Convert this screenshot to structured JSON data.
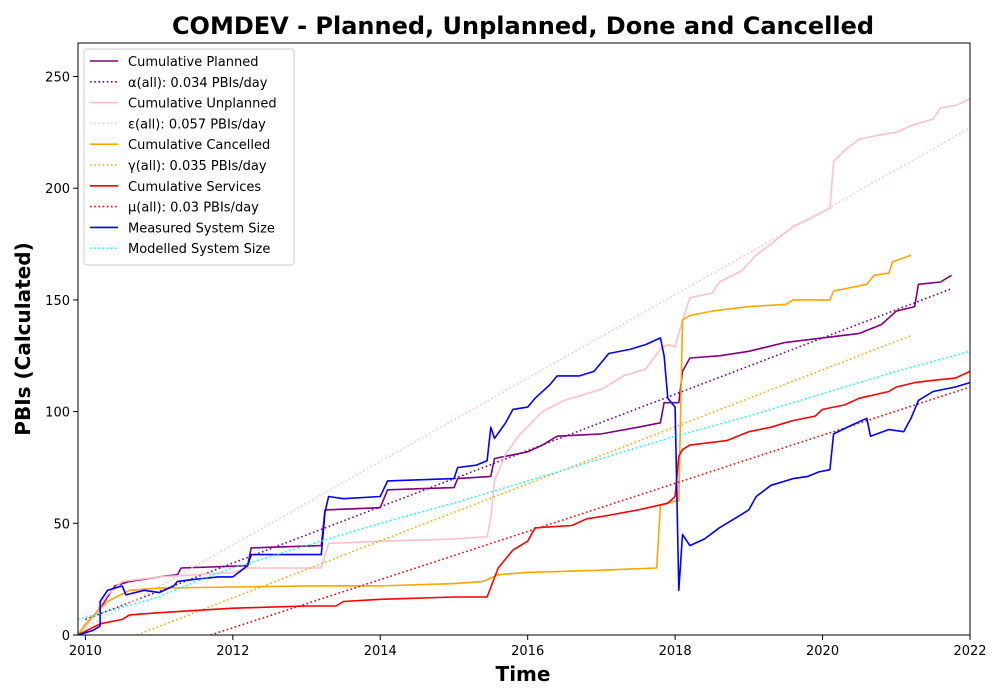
{
  "chart_data": {
    "type": "line",
    "title": "COMDEV - Planned, Unplanned, Done  and Cancelled",
    "xlabel": "Time",
    "ylabel": "PBIs (Calculated)",
    "xlim": [
      2009.9,
      2022.0
    ],
    "ylim": [
      0,
      265
    ],
    "x_ticks": [
      {
        "v": 2010,
        "label": "2010"
      },
      {
        "v": 2012,
        "label": "2012"
      },
      {
        "v": 2014,
        "label": "2014"
      },
      {
        "v": 2016,
        "label": "2016"
      },
      {
        "v": 2018,
        "label": "2018"
      },
      {
        "v": 2020,
        "label": "2020"
      },
      {
        "v": 2022,
        "label": "2022"
      }
    ],
    "y_ticks": [
      {
        "v": 0,
        "label": "0"
      },
      {
        "v": 50,
        "label": "50"
      },
      {
        "v": 100,
        "label": "100"
      },
      {
        "v": 150,
        "label": "150"
      },
      {
        "v": 200,
        "label": "200"
      },
      {
        "v": 250,
        "label": "250"
      }
    ],
    "grid": false,
    "legend_position": "top-left",
    "series": [
      {
        "name": "Cumulative Planned",
        "color": "#800080",
        "style": "solid",
        "points": [
          [
            2009.9,
            0
          ],
          [
            2010.2,
            12
          ],
          [
            2010.4,
            22
          ],
          [
            2010.6,
            24
          ],
          [
            2011.0,
            26
          ],
          [
            2011.25,
            27
          ],
          [
            2011.3,
            30
          ],
          [
            2012.2,
            31
          ],
          [
            2012.25,
            39
          ],
          [
            2013.2,
            40
          ],
          [
            2013.25,
            56
          ],
          [
            2014.0,
            57
          ],
          [
            2014.1,
            65
          ],
          [
            2015.0,
            66
          ],
          [
            2015.05,
            70
          ],
          [
            2015.5,
            71
          ],
          [
            2015.55,
            79
          ],
          [
            2016.0,
            82
          ],
          [
            2016.2,
            85
          ],
          [
            2016.4,
            89
          ],
          [
            2017.0,
            90
          ],
          [
            2017.5,
            93
          ],
          [
            2017.8,
            95
          ],
          [
            2017.85,
            104
          ],
          [
            2018.05,
            104
          ],
          [
            2018.1,
            118
          ],
          [
            2018.2,
            124
          ],
          [
            2018.6,
            125
          ],
          [
            2019.0,
            127
          ],
          [
            2019.5,
            131
          ],
          [
            2020.0,
            133
          ],
          [
            2020.5,
            135
          ],
          [
            2020.8,
            139
          ],
          [
            2021.0,
            145
          ],
          [
            2021.25,
            147
          ],
          [
            2021.3,
            157
          ],
          [
            2021.6,
            158
          ],
          [
            2021.75,
            161
          ]
        ]
      },
      {
        "name": "α(all): 0.034 PBIs/day",
        "color": "#800080",
        "style": "dotted",
        "points": [
          [
            2010.0,
            7
          ],
          [
            2021.75,
            155
          ]
        ]
      },
      {
        "name": "Cumulative Unplanned",
        "color": "#ffc0cb",
        "style": "solid",
        "points": [
          [
            2009.9,
            0
          ],
          [
            2010.1,
            8
          ],
          [
            2010.3,
            18
          ],
          [
            2010.5,
            24
          ],
          [
            2011.0,
            26
          ],
          [
            2012.0,
            28
          ],
          [
            2012.2,
            30
          ],
          [
            2013.2,
            30
          ],
          [
            2013.3,
            41
          ],
          [
            2014.0,
            42
          ],
          [
            2015.0,
            43
          ],
          [
            2015.45,
            44
          ],
          [
            2015.5,
            52
          ],
          [
            2015.55,
            69
          ],
          [
            2015.7,
            81
          ],
          [
            2015.9,
            90
          ],
          [
            2016.2,
            100
          ],
          [
            2016.5,
            105
          ],
          [
            2017.0,
            110
          ],
          [
            2017.3,
            116
          ],
          [
            2017.6,
            119
          ],
          [
            2017.8,
            128
          ],
          [
            2017.9,
            130
          ],
          [
            2018.0,
            129
          ],
          [
            2018.1,
            141
          ],
          [
            2018.2,
            151
          ],
          [
            2018.5,
            153
          ],
          [
            2018.6,
            158
          ],
          [
            2018.9,
            163
          ],
          [
            2019.1,
            170
          ],
          [
            2019.3,
            175
          ],
          [
            2019.6,
            183
          ],
          [
            2019.8,
            186
          ],
          [
            2020.1,
            191
          ],
          [
            2020.15,
            212
          ],
          [
            2020.3,
            217
          ],
          [
            2020.5,
            222
          ],
          [
            2020.8,
            224
          ],
          [
            2021.0,
            225
          ],
          [
            2021.2,
            228
          ],
          [
            2021.5,
            231
          ],
          [
            2021.6,
            236
          ],
          [
            2021.8,
            237
          ],
          [
            2022.0,
            240
          ]
        ]
      },
      {
        "name": "ε(all): 0.057 PBIs/day",
        "color": "#ffc0cb",
        "style": "dotted",
        "points": [
          [
            2010.0,
            3
          ],
          [
            2022.0,
            227
          ]
        ]
      },
      {
        "name": "Cumulative Cancelled",
        "color": "#ffa500",
        "style": "solid",
        "points": [
          [
            2009.9,
            0
          ],
          [
            2010.0,
            5
          ],
          [
            2010.3,
            15
          ],
          [
            2010.6,
            20
          ],
          [
            2011.0,
            21
          ],
          [
            2012.0,
            21.5
          ],
          [
            2013.0,
            22
          ],
          [
            2014.0,
            22
          ],
          [
            2015.0,
            23
          ],
          [
            2015.4,
            24
          ],
          [
            2015.6,
            27
          ],
          [
            2016.0,
            28
          ],
          [
            2017.0,
            29
          ],
          [
            2017.75,
            30
          ],
          [
            2017.8,
            58
          ],
          [
            2018.0,
            60
          ],
          [
            2018.05,
            60
          ],
          [
            2018.1,
            141
          ],
          [
            2018.2,
            143
          ],
          [
            2018.5,
            145
          ],
          [
            2019.0,
            147
          ],
          [
            2019.5,
            148
          ],
          [
            2019.6,
            150
          ],
          [
            2020.1,
            150
          ],
          [
            2020.15,
            154
          ],
          [
            2020.6,
            157
          ],
          [
            2020.7,
            161
          ],
          [
            2020.9,
            162
          ],
          [
            2020.95,
            167
          ],
          [
            2021.2,
            170
          ]
        ]
      },
      {
        "name": "γ(all): 0.035 PBIs/day",
        "color": "#ffa500",
        "style": "dotted",
        "points": [
          [
            2010.7,
            0
          ],
          [
            2021.2,
            134
          ]
        ]
      },
      {
        "name": "Cumulative Services",
        "color": "#ff0000",
        "style": "solid",
        "points": [
          [
            2009.9,
            0
          ],
          [
            2010.2,
            5
          ],
          [
            2010.5,
            7
          ],
          [
            2010.6,
            9
          ],
          [
            2011.0,
            10
          ],
          [
            2012.0,
            12
          ],
          [
            2013.0,
            13
          ],
          [
            2013.4,
            13
          ],
          [
            2013.5,
            15
          ],
          [
            2014.0,
            16
          ],
          [
            2015.0,
            17
          ],
          [
            2015.45,
            17
          ],
          [
            2015.6,
            30
          ],
          [
            2015.8,
            38
          ],
          [
            2016.0,
            42
          ],
          [
            2016.1,
            48
          ],
          [
            2016.6,
            49
          ],
          [
            2016.8,
            52
          ],
          [
            2017.0,
            53
          ],
          [
            2017.5,
            56
          ],
          [
            2017.9,
            59
          ],
          [
            2018.0,
            62
          ],
          [
            2018.05,
            80
          ],
          [
            2018.1,
            83
          ],
          [
            2018.2,
            85
          ],
          [
            2018.7,
            87
          ],
          [
            2019.0,
            91
          ],
          [
            2019.3,
            93
          ],
          [
            2019.6,
            96
          ],
          [
            2019.9,
            98
          ],
          [
            2020.0,
            101
          ],
          [
            2020.3,
            103
          ],
          [
            2020.5,
            106
          ],
          [
            2020.9,
            109
          ],
          [
            2021.0,
            111
          ],
          [
            2021.25,
            113
          ],
          [
            2021.5,
            114
          ],
          [
            2021.8,
            115
          ],
          [
            2022.0,
            118
          ]
        ]
      },
      {
        "name": "μ(all): 0.03 PBIs/day",
        "color": "#ff0000",
        "style": "dotted",
        "points": [
          [
            2011.7,
            0
          ],
          [
            2022.0,
            111
          ]
        ]
      },
      {
        "name": "Measured System Size",
        "color": "#0000ff",
        "style": "solid",
        "points": [
          [
            2009.9,
            0
          ],
          [
            2010.1,
            2
          ],
          [
            2010.2,
            4
          ],
          [
            2010.2,
            15
          ],
          [
            2010.3,
            20
          ],
          [
            2010.5,
            22
          ],
          [
            2010.55,
            18
          ],
          [
            2010.8,
            20
          ],
          [
            2011.0,
            19
          ],
          [
            2011.2,
            22
          ],
          [
            2011.25,
            24
          ],
          [
            2011.5,
            25
          ],
          [
            2011.8,
            26
          ],
          [
            2012.0,
            26
          ],
          [
            2012.2,
            31
          ],
          [
            2012.25,
            36
          ],
          [
            2013.2,
            36
          ],
          [
            2013.25,
            55
          ],
          [
            2013.3,
            62
          ],
          [
            2013.5,
            61
          ],
          [
            2014.0,
            62
          ],
          [
            2014.1,
            69
          ],
          [
            2015.0,
            70
          ],
          [
            2015.05,
            75
          ],
          [
            2015.3,
            76
          ],
          [
            2015.45,
            78
          ],
          [
            2015.5,
            93
          ],
          [
            2015.55,
            88
          ],
          [
            2015.7,
            95
          ],
          [
            2015.8,
            101
          ],
          [
            2016.0,
            102
          ],
          [
            2016.1,
            106
          ],
          [
            2016.3,
            112
          ],
          [
            2016.4,
            116
          ],
          [
            2016.7,
            116
          ],
          [
            2016.9,
            118
          ],
          [
            2017.1,
            126
          ],
          [
            2017.4,
            128
          ],
          [
            2017.6,
            130
          ],
          [
            2017.8,
            133
          ],
          [
            2017.85,
            125
          ],
          [
            2017.9,
            106
          ],
          [
            2018.0,
            102
          ],
          [
            2018.05,
            20
          ],
          [
            2018.1,
            45
          ],
          [
            2018.2,
            40
          ],
          [
            2018.4,
            43
          ],
          [
            2018.6,
            48
          ],
          [
            2018.9,
            54
          ],
          [
            2019.0,
            56
          ],
          [
            2019.1,
            62
          ],
          [
            2019.3,
            67
          ],
          [
            2019.6,
            70
          ],
          [
            2019.8,
            71
          ],
          [
            2019.95,
            73
          ],
          [
            2020.1,
            74
          ],
          [
            2020.15,
            90
          ],
          [
            2020.4,
            94
          ],
          [
            2020.6,
            97
          ],
          [
            2020.65,
            89
          ],
          [
            2020.9,
            92
          ],
          [
            2021.1,
            91
          ],
          [
            2021.2,
            97
          ],
          [
            2021.3,
            105
          ],
          [
            2021.5,
            109
          ],
          [
            2021.8,
            111
          ],
          [
            2022.0,
            113
          ]
        ]
      },
      {
        "name": "Modelled System Size",
        "color": "#00ffff",
        "style": "dotted",
        "points": [
          [
            2009.9,
            7
          ],
          [
            2011.0,
            17
          ],
          [
            2011.5,
            24
          ],
          [
            2012.0,
            30
          ],
          [
            2013.0,
            40
          ],
          [
            2014.0,
            50
          ],
          [
            2015.0,
            59
          ],
          [
            2016.0,
            69
          ],
          [
            2017.0,
            79
          ],
          [
            2018.0,
            89
          ],
          [
            2019.0,
            98
          ],
          [
            2020.0,
            108
          ],
          [
            2021.0,
            118
          ],
          [
            2022.0,
            127
          ]
        ]
      }
    ]
  }
}
